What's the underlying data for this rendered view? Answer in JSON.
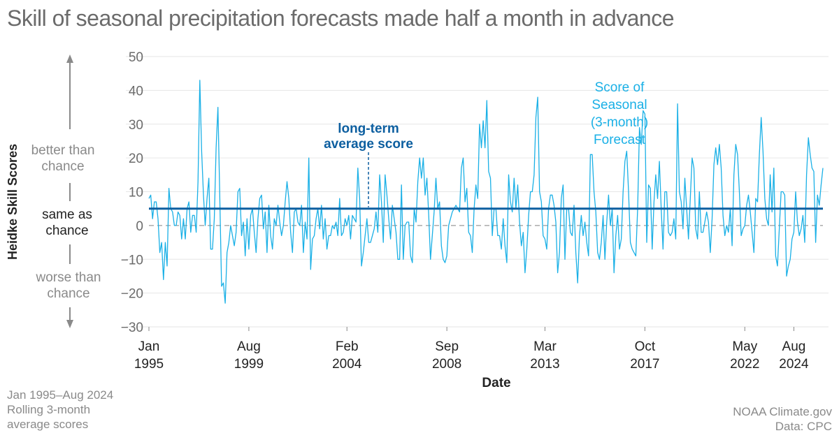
{
  "header": {
    "title": "Skill of seasonal precipitation forecasts made half a month in advance"
  },
  "y_axis_title": "Heidke Skill Scores",
  "side_labels": {
    "better": [
      "better than",
      "chance"
    ],
    "same": [
      "same as",
      "chance"
    ],
    "worse": [
      "worse than",
      "chance"
    ]
  },
  "footer": {
    "left": [
      "Jan 1995–Aug 2024",
      "Rolling 3-month",
      "average scores"
    ],
    "right": [
      "NOAA Climate.gov",
      "Data: CPC"
    ]
  },
  "colors": {
    "series": "#1ab0e6",
    "average": "#0d5fa0",
    "grid": "#e6e6e6",
    "zero": "#9a9a9a"
  },
  "chart_data": {
    "type": "line",
    "title": "Skill of seasonal precipitation forecasts made half a month in advance",
    "xlabel": "Date",
    "ylabel": "Heidke Skill Scores",
    "ylim": [
      -30,
      50
    ],
    "yticks": [
      50,
      40,
      30,
      20,
      10,
      0,
      -10,
      -20,
      -30
    ],
    "x_start": "1995-01",
    "x_end": "2024-08",
    "xticks": [
      {
        "t": 0,
        "line1": "Jan",
        "line2": "1995"
      },
      {
        "t": 55,
        "line1": "Aug",
        "line2": "1999"
      },
      {
        "t": 109,
        "line1": "Feb",
        "line2": "2004"
      },
      {
        "t": 164,
        "line1": "Sep",
        "line2": "2008"
      },
      {
        "t": 218,
        "line1": "Mar",
        "line2": "2013"
      },
      {
        "t": 273,
        "line1": "Oct",
        "line2": "2017"
      },
      {
        "t": 328,
        "line1": "May",
        "line2": "2022"
      },
      {
        "t": 355,
        "line1": "Aug",
        "line2": "2024"
      }
    ],
    "average_score": 5,
    "annotations": {
      "average": [
        "long-term",
        "average score"
      ],
      "series": [
        "Score of",
        "Seasonal",
        "(3-month)",
        "Forecast"
      ]
    },
    "series": [
      {
        "name": "Score of Seasonal (3-month) Forecast",
        "values": [
          8,
          9,
          2,
          7,
          7,
          2,
          -8,
          -5,
          -16,
          -5,
          -12,
          11,
          5,
          4,
          0,
          0,
          4,
          3,
          -4,
          2,
          -4,
          5,
          7,
          -2,
          3,
          3,
          -2,
          13,
          43,
          22,
          9,
          0,
          8,
          14,
          -7,
          -7,
          2,
          23,
          35,
          9,
          -18,
          -17,
          -23,
          -8,
          -5,
          0,
          -3,
          -6,
          -2,
          10,
          11,
          -3,
          1,
          -9,
          2,
          -7,
          3,
          5,
          -2,
          -8,
          2,
          8,
          9,
          -1,
          4,
          -8,
          6,
          -3,
          -7,
          2,
          0,
          6,
          1,
          -3,
          0,
          7,
          13,
          8,
          -2,
          -8,
          4,
          5,
          1,
          0,
          6,
          -8,
          1,
          -4,
          20,
          -13,
          -4,
          -3,
          2,
          5,
          -1,
          6,
          -4,
          2,
          -7,
          -3,
          -3,
          0,
          -1,
          1,
          -3,
          8,
          -3,
          -2,
          2,
          0,
          3,
          -4,
          3,
          2,
          1,
          17,
          8,
          -12,
          -8,
          -3,
          2,
          -5,
          -5,
          -3,
          -1,
          4,
          -2,
          15,
          7,
          -5,
          15,
          9,
          2,
          -4,
          6,
          2,
          -2,
          -10,
          -10,
          12,
          -10,
          0,
          1,
          1,
          -9,
          -11,
          5,
          1,
          13,
          20,
          14,
          20,
          9,
          14,
          3,
          -10,
          -3,
          4,
          14,
          5,
          7,
          -6,
          -10,
          -11,
          -9,
          0,
          2,
          4,
          5,
          6,
          5,
          4,
          17,
          20,
          7,
          11,
          -2,
          -3,
          -8,
          5,
          12,
          8,
          30,
          23,
          31,
          23,
          37,
          16,
          14,
          -3,
          5,
          5,
          -3,
          -3,
          -7,
          2,
          -6,
          -11,
          15,
          7,
          4,
          14,
          5,
          12,
          1,
          -6,
          -2,
          -14,
          -7,
          3,
          10,
          10,
          15,
          32,
          38,
          10,
          7,
          -3,
          -4,
          -7,
          5,
          9,
          9,
          6,
          1,
          -14,
          -8,
          8,
          12,
          -10,
          5,
          5,
          -2,
          -3,
          6,
          -8,
          -17,
          -3,
          3,
          -3,
          1,
          -5,
          -9,
          21,
          21,
          10,
          4,
          -8,
          -10,
          -5,
          3,
          -10,
          1,
          9,
          0,
          5,
          -14,
          -3,
          3,
          -7,
          -4,
          10,
          19,
          22,
          10,
          -5,
          -7,
          -8,
          -9,
          5,
          29,
          24,
          34,
          33,
          -5,
          12,
          11,
          -7,
          7,
          15,
          8,
          19,
          5,
          -7,
          10,
          10,
          -2,
          -3,
          -2,
          2,
          -4,
          36,
          10,
          7,
          -1,
          14,
          5,
          -4,
          8,
          20,
          17,
          -1,
          -4,
          10,
          -2,
          -2,
          1,
          4,
          1,
          -8,
          2,
          18,
          23,
          18,
          24,
          17,
          3,
          -3,
          0,
          -2,
          5,
          -6,
          15,
          24,
          21,
          10,
          -3,
          -1,
          0,
          6,
          9,
          4,
          -2,
          -8,
          8,
          7,
          21,
          32,
          22,
          8,
          2,
          0,
          15,
          4,
          17,
          -9,
          -12,
          -1,
          10,
          10,
          9,
          -15,
          -12,
          -10,
          -4,
          -2,
          10,
          1,
          -3,
          -1,
          3,
          -5,
          15,
          26,
          21,
          17,
          16,
          -5,
          9,
          6,
          12,
          17
        ]
      }
    ]
  }
}
